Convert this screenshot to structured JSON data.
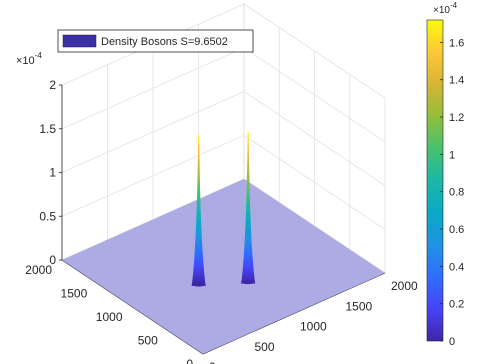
{
  "chart_data": {
    "type": "surface",
    "legend": {
      "label": "Density Bosons S=9.6502",
      "color": "#3b2fa8",
      "placement": "top-left"
    },
    "axes": {
      "x": {
        "range": [
          0,
          2000
        ],
        "ticks": [
          "0",
          "500",
          "1000",
          "1500",
          "2000"
        ]
      },
      "y": {
        "range": [
          0,
          2000
        ],
        "ticks": [
          "0",
          "500",
          "1000",
          "1500",
          "2000"
        ]
      },
      "z": {
        "range": [
          0,
          2
        ],
        "ticks": [
          "0",
          "0.5",
          "1",
          "1.5",
          "2"
        ],
        "exponent": "×10",
        "exponent_power": "-4"
      },
      "grid": true
    },
    "floor_color": "#a9a6e3",
    "spikes": [
      {
        "x": 650,
        "y": 900,
        "peak": 1.72
      },
      {
        "x": 1000,
        "y": 650,
        "peak": 1.72
      }
    ],
    "colorbar": {
      "range": [
        0,
        1.72
      ],
      "ticks": [
        "0",
        "0.2",
        "0.4",
        "0.6",
        "0.8",
        "1",
        "1.2",
        "1.4",
        "1.6"
      ],
      "exponent": "×10",
      "exponent_power": "-4",
      "colormap": [
        "#3e26a8",
        "#4743f9",
        "#2f6efd",
        "#1e93e3",
        "#0ba9c6",
        "#1ab8a6",
        "#48c16e",
        "#92bf3a",
        "#d6b534",
        "#fdc737",
        "#f9fb0e"
      ]
    }
  }
}
